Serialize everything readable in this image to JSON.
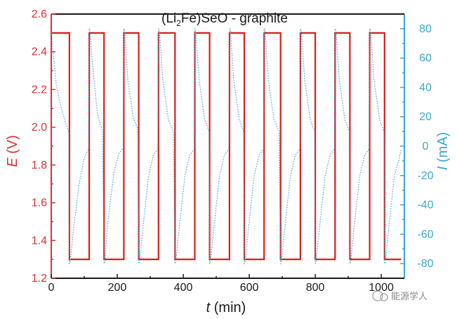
{
  "chart_data": {
    "type": "line",
    "title_prefix": "(Li",
    "title_sub": "2",
    "title_suffix": "Fe)SeO - graphite",
    "xlabel_var": "t",
    "xlabel_unit": " (min)",
    "ylabel_left_var": "E",
    "ylabel_left_unit": " (V)",
    "ylabel_right_var": "I",
    "ylabel_right_unit": " (mA)",
    "xlim": [
      0,
      1070
    ],
    "ylim_left": [
      1.2,
      2.6
    ],
    "ylim_right": [
      -90,
      90
    ],
    "xticks": [
      0,
      200,
      400,
      600,
      800,
      1000
    ],
    "xtick_labels": [
      "0",
      "200",
      "400",
      "600",
      "800",
      "1000"
    ],
    "yticks_left": [
      1.2,
      1.4,
      1.6,
      1.8,
      2.0,
      2.2,
      2.4,
      2.6
    ],
    "ytick_labels_left": [
      "1.2",
      "1.4",
      "1.6",
      "1.8",
      "2.0",
      "2.2",
      "2.4",
      "2.6"
    ],
    "yticks_right": [
      -80,
      -60,
      -40,
      -20,
      0,
      20,
      40,
      60,
      80
    ],
    "ytick_labels_right": [
      "-80",
      "-60",
      "-40",
      "-20",
      "0",
      "20",
      "40",
      "60",
      "80"
    ],
    "colors": {
      "left_axis": "#e03030",
      "right_axis": "#3aa8d0",
      "voltage": "#d81e1e",
      "current": "#3aa8d0"
    },
    "series": [
      {
        "name": "E",
        "axis": "left",
        "style": "solid",
        "x": [
          0,
          55,
          55,
          115,
          115,
          160,
          160,
          220,
          220,
          265,
          265,
          325,
          325,
          375,
          375,
          435,
          435,
          480,
          480,
          540,
          540,
          585,
          585,
          645,
          645,
          695,
          695,
          755,
          755,
          800,
          800,
          860,
          860,
          905,
          905,
          965,
          965,
          1010,
          1010,
          1060
        ],
        "y": [
          2.5,
          2.5,
          1.3,
          1.3,
          2.5,
          2.5,
          1.3,
          1.3,
          2.5,
          2.5,
          1.3,
          1.3,
          2.5,
          2.5,
          1.3,
          1.3,
          2.5,
          2.5,
          1.3,
          1.3,
          2.5,
          2.5,
          1.3,
          1.3,
          2.5,
          2.5,
          1.3,
          1.3,
          2.5,
          2.5,
          1.3,
          1.3,
          2.5,
          2.5,
          1.3,
          1.3,
          2.5,
          2.5,
          1.3,
          1.3
        ]
      },
      {
        "name": "I",
        "axis": "right",
        "style": "dotted",
        "x": [
          0,
          5,
          15,
          30,
          45,
          53,
          55,
          56,
          58,
          68,
          85,
          100,
          113,
          115,
          116,
          118,
          125,
          140,
          155,
          160,
          161,
          163,
          170,
          190,
          205,
          218,
          220,
          221,
          223,
          232,
          248,
          262,
          265,
          266,
          268,
          278,
          295,
          310,
          323,
          325,
          326,
          328,
          338,
          355,
          370,
          375,
          376,
          378,
          388,
          405,
          420,
          433,
          435,
          436,
          438,
          448,
          465,
          478,
          480,
          481,
          483,
          493,
          510,
          525,
          538,
          540,
          541,
          543,
          553,
          570,
          583,
          585,
          586,
          588,
          598,
          615,
          630,
          643,
          645,
          646,
          648,
          658,
          675,
          690,
          695,
          696,
          698,
          708,
          725,
          740,
          753,
          755,
          756,
          758,
          768,
          785,
          798,
          800,
          801,
          803,
          813,
          830,
          845,
          858,
          860,
          861,
          863,
          873,
          890,
          903,
          905,
          906,
          908,
          918,
          935,
          950,
          963,
          965,
          966,
          968,
          978,
          995,
          1008,
          1010,
          1011,
          1013,
          1023,
          1040,
          1055,
          1060
        ],
        "y": [
          80,
          65,
          42,
          26,
          15,
          10,
          -80,
          -80,
          -78,
          -55,
          -25,
          -8,
          -2,
          80,
          80,
          78,
          55,
          22,
          10,
          -80,
          -80,
          -78,
          -55,
          -18,
          -5,
          -1,
          80,
          80,
          78,
          45,
          20,
          12,
          -80,
          -80,
          -78,
          -55,
          -20,
          -6,
          -2,
          80,
          80,
          78,
          45,
          18,
          10,
          -80,
          -80,
          -78,
          -55,
          -20,
          -6,
          -2,
          80,
          80,
          78,
          45,
          18,
          10,
          -80,
          -80,
          -78,
          -55,
          -20,
          -6,
          -2,
          80,
          80,
          78,
          45,
          18,
          10,
          -80,
          -80,
          -78,
          -55,
          -20,
          -6,
          -2,
          80,
          80,
          78,
          45,
          18,
          10,
          -80,
          -80,
          -78,
          -55,
          -20,
          -6,
          -2,
          80,
          80,
          78,
          45,
          18,
          10,
          -80,
          -80,
          -78,
          -55,
          -20,
          -6,
          -2,
          80,
          80,
          78,
          45,
          18,
          10,
          -80,
          -80,
          -78,
          -55,
          -20,
          -6,
          -2,
          80,
          80,
          78,
          45,
          18,
          10,
          -80,
          -80,
          -78,
          -55,
          -20,
          -8,
          -2
        ]
      }
    ]
  },
  "watermark": "能源学人"
}
